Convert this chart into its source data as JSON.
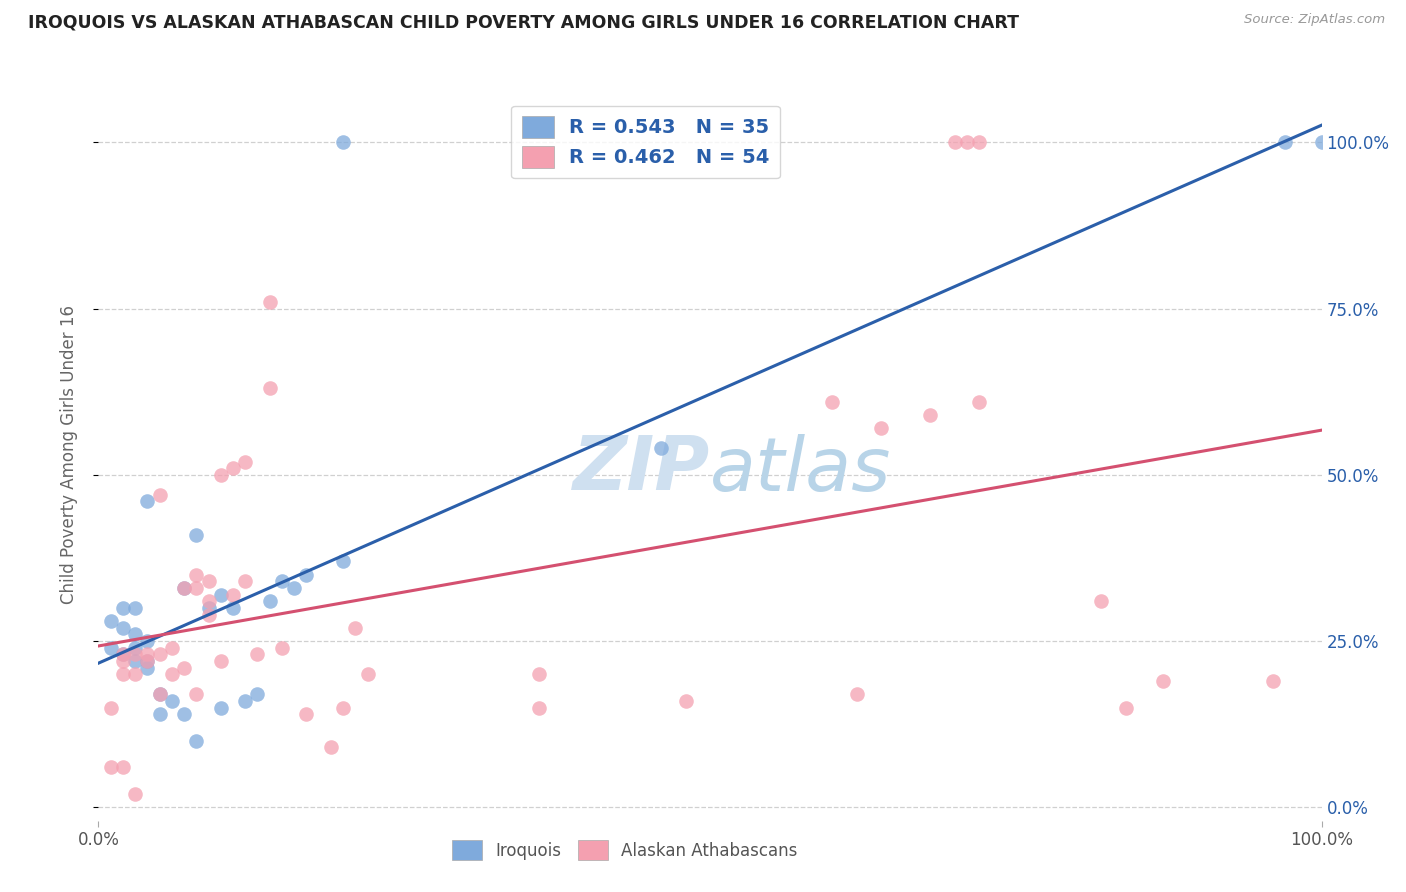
{
  "title": "IROQUOIS VS ALASKAN ATHABASCAN CHILD POVERTY AMONG GIRLS UNDER 16 CORRELATION CHART",
  "source": "Source: ZipAtlas.com",
  "ylabel": "Child Poverty Among Girls Under 16",
  "xlim": [
    0.0,
    1.0
  ],
  "ylim": [
    -0.02,
    1.08
  ],
  "ytick_values": [
    0.0,
    0.25,
    0.5,
    0.75,
    1.0
  ],
  "ytick_labels": [
    "0.0%",
    "25.0%",
    "50.0%",
    "75.0%",
    "100.0%"
  ],
  "xtick_values": [
    0.0,
    1.0
  ],
  "xtick_labels": [
    "0.0%",
    "100.0%"
  ],
  "iroquois_color": "#7faadc",
  "iroquois_line_color": "#2b5faa",
  "athabascan_color": "#f4a0b0",
  "athabascan_line_color": "#d45070",
  "iroquois_R": 0.543,
  "iroquois_N": 35,
  "athabascan_R": 0.462,
  "athabascan_N": 54,
  "legend_text_color": "#2a5faa",
  "watermark_color": "#cfe0f0",
  "background_color": "#ffffff",
  "grid_color": "#d0d0d0",
  "iroquois_x": [
    0.01,
    0.01,
    0.02,
    0.02,
    0.02,
    0.03,
    0.03,
    0.03,
    0.03,
    0.04,
    0.04,
    0.04,
    0.04,
    0.05,
    0.05,
    0.06,
    0.07,
    0.07,
    0.08,
    0.08,
    0.09,
    0.1,
    0.1,
    0.11,
    0.12,
    0.13,
    0.14,
    0.15,
    0.16,
    0.17,
    0.2,
    0.2,
    0.46,
    0.97,
    1.0
  ],
  "iroquois_y": [
    0.24,
    0.28,
    0.23,
    0.27,
    0.3,
    0.22,
    0.24,
    0.26,
    0.3,
    0.21,
    0.22,
    0.25,
    0.46,
    0.14,
    0.17,
    0.16,
    0.14,
    0.33,
    0.1,
    0.41,
    0.3,
    0.15,
    0.32,
    0.3,
    0.16,
    0.17,
    0.31,
    0.34,
    0.33,
    0.35,
    0.37,
    1.0,
    0.54,
    1.0,
    1.0
  ],
  "athabascan_x": [
    0.01,
    0.01,
    0.02,
    0.02,
    0.02,
    0.02,
    0.03,
    0.03,
    0.03,
    0.04,
    0.04,
    0.05,
    0.05,
    0.05,
    0.06,
    0.06,
    0.07,
    0.07,
    0.08,
    0.08,
    0.08,
    0.09,
    0.09,
    0.09,
    0.1,
    0.1,
    0.11,
    0.11,
    0.12,
    0.12,
    0.13,
    0.14,
    0.14,
    0.15,
    0.17,
    0.19,
    0.2,
    0.21,
    0.22,
    0.36,
    0.36,
    0.48,
    0.6,
    0.62,
    0.64,
    0.68,
    0.7,
    0.71,
    0.72,
    0.72,
    0.82,
    0.84,
    0.87,
    0.96
  ],
  "athabascan_y": [
    0.06,
    0.15,
    0.06,
    0.2,
    0.22,
    0.23,
    0.02,
    0.2,
    0.23,
    0.22,
    0.23,
    0.17,
    0.23,
    0.47,
    0.2,
    0.24,
    0.21,
    0.33,
    0.17,
    0.33,
    0.35,
    0.29,
    0.31,
    0.34,
    0.22,
    0.5,
    0.32,
    0.51,
    0.34,
    0.52,
    0.23,
    0.63,
    0.76,
    0.24,
    0.14,
    0.09,
    0.15,
    0.27,
    0.2,
    0.15,
    0.2,
    0.16,
    0.61,
    0.17,
    0.57,
    0.59,
    1.0,
    1.0,
    1.0,
    0.61,
    0.31,
    0.15,
    0.19,
    0.19
  ]
}
